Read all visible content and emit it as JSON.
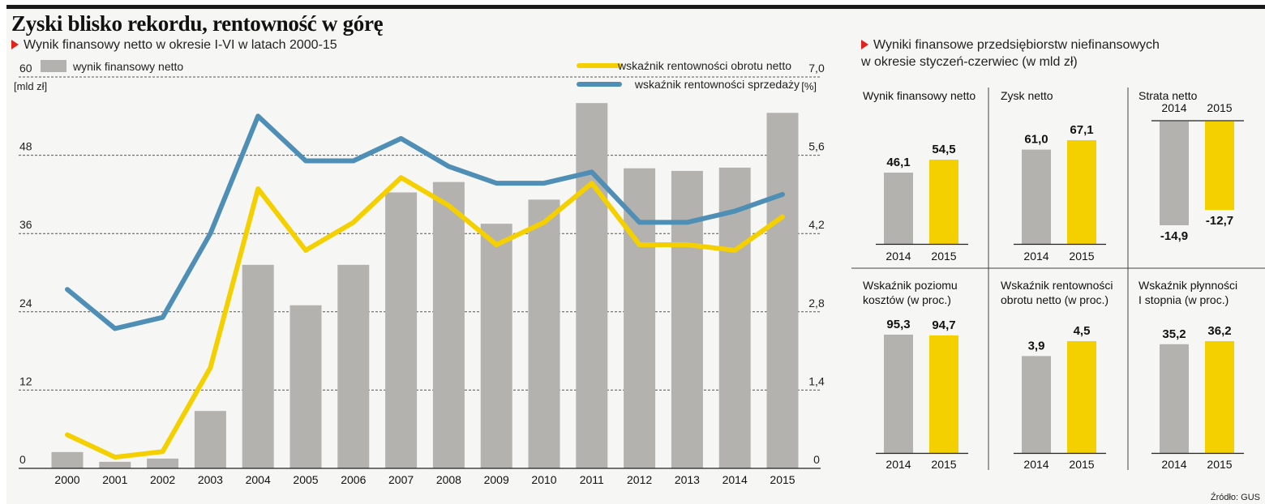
{
  "title": "Zyski blisko rekordu, rentowność w górę",
  "subtitle_main": "Wynik finansowy netto w okresie I-VI w latach 2000-15",
  "subtitle_right_1": "Wyniki finansowe przedsiębiorstw niefinansowych",
  "subtitle_right_2": "w okresie styczeń-czerwiec (w mld zł)",
  "source": "Źródło: GUS",
  "colors": {
    "bar": "#b3b2ae",
    "yellow": "#f5d000",
    "blue": "#4f8fb6",
    "panel": "#f6f6f4",
    "marker": "#e2231a"
  },
  "chart_data": [
    {
      "type": "bar",
      "categories": [
        "2000",
        "2001",
        "2002",
        "2003",
        "2004",
        "2005",
        "2006",
        "2007",
        "2008",
        "2009",
        "2010",
        "2011",
        "2012",
        "2013",
        "2014",
        "2015"
      ],
      "series": [
        {
          "name": "wynik finansowy netto",
          "axis": "left",
          "values": [
            2.5,
            1.0,
            1.5,
            8.8,
            31.2,
            25.0,
            31.2,
            42.3,
            43.9,
            37.5,
            41.2,
            56.0,
            46.0,
            45.6,
            46.1,
            54.5
          ]
        },
        {
          "name": "wskaźnik rentowności obrotu netto",
          "type": "line",
          "axis": "right",
          "values": [
            0.6,
            0.2,
            0.3,
            1.8,
            5.0,
            3.9,
            4.4,
            5.2,
            4.7,
            4.0,
            4.4,
            5.1,
            4.0,
            4.0,
            3.9,
            4.5
          ]
        },
        {
          "name": "wskaźnik rentowności sprzedaży",
          "type": "line",
          "axis": "right",
          "values": [
            3.2,
            2.5,
            2.7,
            4.2,
            6.3,
            5.5,
            5.5,
            5.9,
            5.4,
            5.1,
            5.1,
            5.3,
            4.4,
            4.4,
            4.6,
            4.9
          ]
        }
      ],
      "yleft_ticks": [
        "0",
        "12",
        "24",
        "36",
        "48",
        "60"
      ],
      "yleft_lim": [
        0,
        60
      ],
      "yleft_unit": "[mld zł]",
      "yright_ticks": [
        "0",
        "1,4",
        "2,8",
        "4,2",
        "5,6",
        "7,0"
      ],
      "yright_lim": [
        0,
        7.0
      ],
      "yright_unit": "[%]",
      "grid": true,
      "legend": "top"
    },
    {
      "type": "bar",
      "panels": [
        {
          "title": [
            "Wynik finansowy netto"
          ],
          "categories": [
            "2014",
            "2015"
          ],
          "values": [
            46.1,
            54.5
          ],
          "labels": [
            "46,1",
            "54,5"
          ]
        },
        {
          "title": [
            "Zysk netto"
          ],
          "categories": [
            "2014",
            "2015"
          ],
          "values": [
            61.0,
            67.1
          ],
          "labels": [
            "61,0",
            "67,1"
          ]
        },
        {
          "title": [
            "Strata netto"
          ],
          "categories": [
            "2014",
            "2015"
          ],
          "values": [
            -14.9,
            -12.7
          ],
          "labels": [
            "-14,9",
            "-12,7"
          ]
        },
        {
          "title": [
            "Wskaźnik poziomu",
            "kosztów (w proc.)"
          ],
          "categories": [
            "2014",
            "2015"
          ],
          "values": [
            95.3,
            94.7
          ],
          "labels": [
            "95,3",
            "94,7"
          ]
        },
        {
          "title": [
            "Wskaźnik rentowności",
            "obrotu netto (w proc.)"
          ],
          "categories": [
            "2014",
            "2015"
          ],
          "values": [
            3.9,
            4.5
          ],
          "labels": [
            "3,9",
            "4,5"
          ]
        },
        {
          "title": [
            "Wskaźnik płynności",
            "I stopnia (w proc.)"
          ],
          "categories": [
            "2014",
            "2015"
          ],
          "values": [
            35.2,
            36.2
          ],
          "labels": [
            "35,2",
            "36,2"
          ]
        }
      ]
    }
  ]
}
